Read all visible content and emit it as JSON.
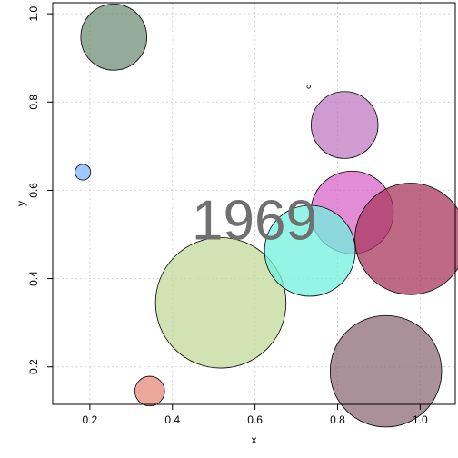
{
  "chart_data": {
    "type": "scatter",
    "subtype": "bubble",
    "annotation": "1969",
    "xlabel": "x",
    "ylabel": "y",
    "xlim": [
      0.11,
      1.085
    ],
    "ylim": [
      0.115,
      1.025
    ],
    "xticks": [
      "0.2",
      "0.4",
      "0.6",
      "0.8",
      "1.0"
    ],
    "yticks": [
      "0.2",
      "0.4",
      "0.6",
      "0.8",
      "1.0"
    ],
    "xtick_values": [
      0.2,
      0.4,
      0.6,
      0.8,
      1.0
    ],
    "ytick_values": [
      0.2,
      0.4,
      0.6,
      0.8,
      1.0
    ],
    "grid": true,
    "points": [
      {
        "x": 0.258,
        "y": 0.947,
        "r": 0.08,
        "color": "#6f8f76"
      },
      {
        "x": 0.183,
        "y": 0.641,
        "r": 0.019,
        "color": "#7fb7ff"
      },
      {
        "x": 0.73,
        "y": 0.835,
        "r": 0.004,
        "color": "#ffffff"
      },
      {
        "x": 0.345,
        "y": 0.145,
        "r": 0.036,
        "color": "#e38a78"
      },
      {
        "x": 0.517,
        "y": 0.345,
        "r": 0.158,
        "color": "#c2d99a"
      },
      {
        "x": 0.817,
        "y": 0.748,
        "r": 0.081,
        "color": "#c07ac0"
      },
      {
        "x": 0.835,
        "y": 0.55,
        "r": 0.1,
        "color": "#d866c8"
      },
      {
        "x": 0.977,
        "y": 0.49,
        "r": 0.135,
        "color": "#a8385e"
      },
      {
        "x": 0.733,
        "y": 0.463,
        "r": 0.11,
        "color": "#70f2df"
      },
      {
        "x": 0.917,
        "y": 0.19,
        "r": 0.135,
        "color": "#8c6b77"
      }
    ]
  }
}
